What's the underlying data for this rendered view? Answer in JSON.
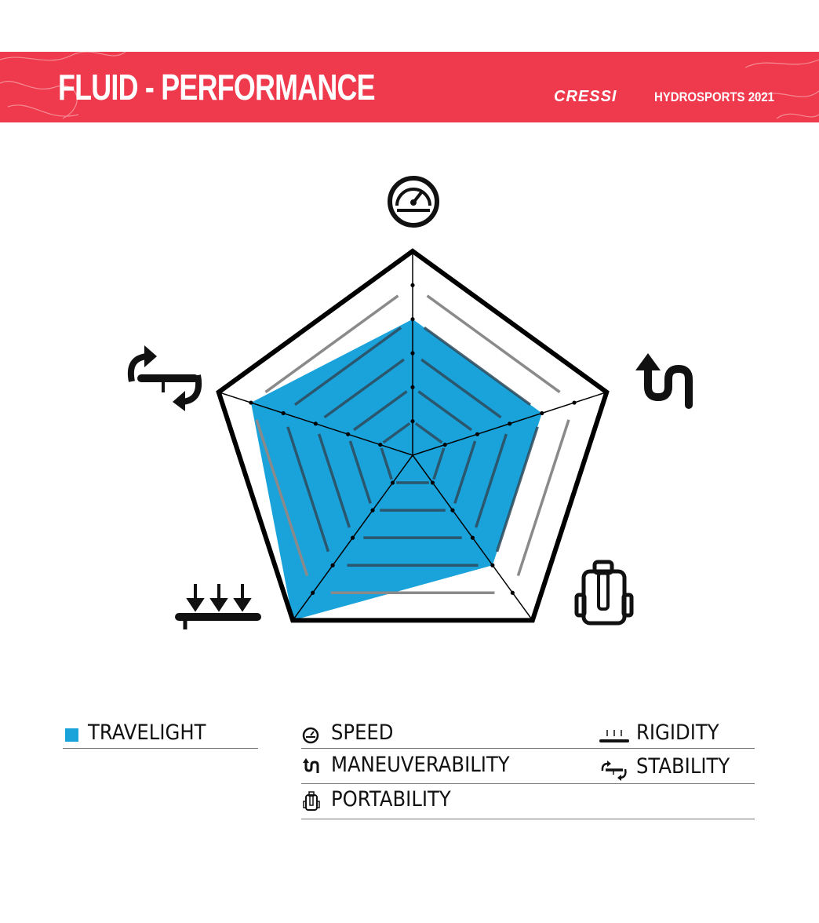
{
  "header": {
    "title": "FLUID - PERFORMANCE",
    "brand": "CRESSI",
    "collection": "HYDROSPORTS 2021",
    "background_color": "#ee3a4c"
  },
  "chart_data": {
    "type": "radar",
    "axes": [
      {
        "key": "speed",
        "label": "SPEED",
        "icon": "speedometer-icon"
      },
      {
        "key": "maneuverability",
        "label": "MANEUVERABILITY",
        "icon": "s-turn-arrow-icon"
      },
      {
        "key": "portability",
        "label": "PORTABILITY",
        "icon": "backpack-icon"
      },
      {
        "key": "rigidity",
        "label": "RIGIDITY",
        "icon": "board-pressure-arrows-icon"
      },
      {
        "key": "stability",
        "label": "STABILITY",
        "icon": "rotating-arrows-board-icon"
      }
    ],
    "range": [
      0,
      6
    ],
    "levels": 6,
    "series": [
      {
        "name": "TRAVELIGHT",
        "color": "#1aa3db",
        "values": [
          4,
          4,
          4,
          6,
          5
        ]
      }
    ],
    "legend_placement": "bottom"
  }
}
